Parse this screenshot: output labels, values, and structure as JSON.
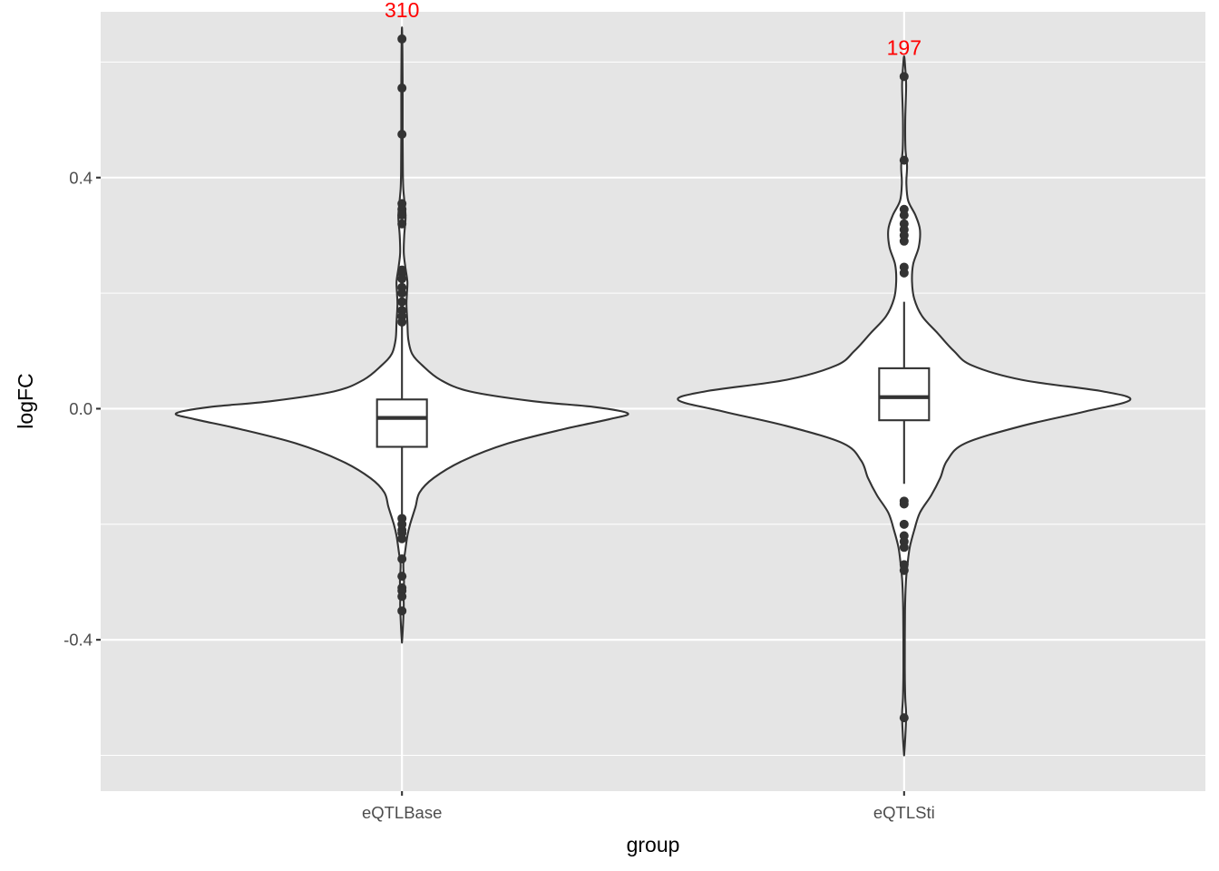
{
  "chart_data": {
    "type": "violin",
    "xlabel": "group",
    "ylabel": "logFC",
    "ylim": [
      -0.662,
      0.687
    ],
    "y_ticks": [
      {
        "value": -0.4,
        "label": "-0.4"
      },
      {
        "value": 0.0,
        "label": "0.0"
      },
      {
        "value": 0.4,
        "label": "0.4"
      }
    ],
    "y_minor": [
      -0.6,
      -0.2,
      0.2,
      0.6
    ],
    "grid": true,
    "overlay": "boxplot",
    "groups": [
      {
        "name": "eQTLBase",
        "count_label": "310",
        "count_y": 0.69,
        "box": {
          "q1": -0.066,
          "median": -0.016,
          "q3": 0.016,
          "whisker_low": -0.19,
          "whisker_high": 0.15
        },
        "violin_range": [
          -0.405,
          0.66
        ],
        "violin_profile": [
          [
            -0.405,
            0.0
          ],
          [
            -0.38,
            0.004
          ],
          [
            -0.34,
            0.008
          ],
          [
            -0.32,
            0.006
          ],
          [
            -0.3,
            0.009
          ],
          [
            -0.27,
            0.006
          ],
          [
            -0.25,
            0.013
          ],
          [
            -0.22,
            0.024
          ],
          [
            -0.2,
            0.036
          ],
          [
            -0.17,
            0.06
          ],
          [
            -0.145,
            0.078
          ],
          [
            -0.12,
            0.14
          ],
          [
            -0.09,
            0.27
          ],
          [
            -0.06,
            0.47
          ],
          [
            -0.035,
            0.72
          ],
          [
            -0.018,
            0.92
          ],
          [
            -0.008,
            1.0
          ],
          [
            0.003,
            0.85
          ],
          [
            0.013,
            0.58
          ],
          [
            0.03,
            0.3
          ],
          [
            0.05,
            0.17
          ],
          [
            0.075,
            0.09
          ],
          [
            0.095,
            0.045
          ],
          [
            0.12,
            0.028
          ],
          [
            0.15,
            0.024
          ],
          [
            0.18,
            0.02
          ],
          [
            0.2,
            0.022
          ],
          [
            0.22,
            0.024
          ],
          [
            0.245,
            0.015
          ],
          [
            0.27,
            0.008
          ],
          [
            0.3,
            0.01
          ],
          [
            0.33,
            0.016
          ],
          [
            0.35,
            0.013
          ],
          [
            0.38,
            0.006
          ],
          [
            0.41,
            0.004
          ],
          [
            0.47,
            0.003
          ],
          [
            0.56,
            0.003
          ],
          [
            0.62,
            0.002
          ],
          [
            0.66,
            0.0
          ]
        ],
        "outliers": [
          0.64,
          0.555,
          0.475,
          0.355,
          0.345,
          0.335,
          0.32,
          0.24,
          0.235,
          0.225,
          0.21,
          0.2,
          0.185,
          0.17,
          0.16,
          0.15,
          -0.19,
          -0.2,
          -0.21,
          -0.215,
          -0.225,
          -0.26,
          -0.29,
          -0.31,
          -0.315,
          -0.325,
          -0.35
        ]
      },
      {
        "name": "eQTLSti",
        "count_label": "197",
        "count_y": 0.625,
        "box": {
          "q1": -0.02,
          "median": 0.02,
          "q3": 0.07,
          "whisker_low": -0.13,
          "whisker_high": 0.185
        },
        "violin_range": [
          -0.6,
          0.61
        ],
        "violin_profile": [
          [
            -0.6,
            0.0
          ],
          [
            -0.57,
            0.005
          ],
          [
            -0.53,
            0.009
          ],
          [
            -0.5,
            0.005
          ],
          [
            -0.45,
            0.003
          ],
          [
            -0.35,
            0.004
          ],
          [
            -0.3,
            0.008
          ],
          [
            -0.27,
            0.015
          ],
          [
            -0.24,
            0.025
          ],
          [
            -0.21,
            0.045
          ],
          [
            -0.18,
            0.07
          ],
          [
            -0.15,
            0.12
          ],
          [
            -0.12,
            0.16
          ],
          [
            -0.09,
            0.19
          ],
          [
            -0.06,
            0.27
          ],
          [
            -0.03,
            0.52
          ],
          [
            -0.005,
            0.8
          ],
          [
            0.015,
            1.0
          ],
          [
            0.03,
            0.88
          ],
          [
            0.05,
            0.52
          ],
          [
            0.075,
            0.3
          ],
          [
            0.1,
            0.22
          ],
          [
            0.13,
            0.15
          ],
          [
            0.16,
            0.08
          ],
          [
            0.19,
            0.045
          ],
          [
            0.22,
            0.035
          ],
          [
            0.25,
            0.04
          ],
          [
            0.28,
            0.065
          ],
          [
            0.31,
            0.07
          ],
          [
            0.335,
            0.05
          ],
          [
            0.36,
            0.018
          ],
          [
            0.39,
            0.01
          ],
          [
            0.42,
            0.013
          ],
          [
            0.45,
            0.006
          ],
          [
            0.5,
            0.005
          ],
          [
            0.56,
            0.009
          ],
          [
            0.59,
            0.005
          ],
          [
            0.61,
            0.0
          ]
        ],
        "outliers": [
          0.575,
          0.43,
          0.345,
          0.335,
          0.32,
          0.31,
          0.3,
          0.29,
          0.245,
          0.235,
          -0.16,
          -0.165,
          -0.2,
          -0.22,
          -0.23,
          -0.24,
          -0.27,
          -0.28,
          -0.535
        ]
      }
    ]
  }
}
